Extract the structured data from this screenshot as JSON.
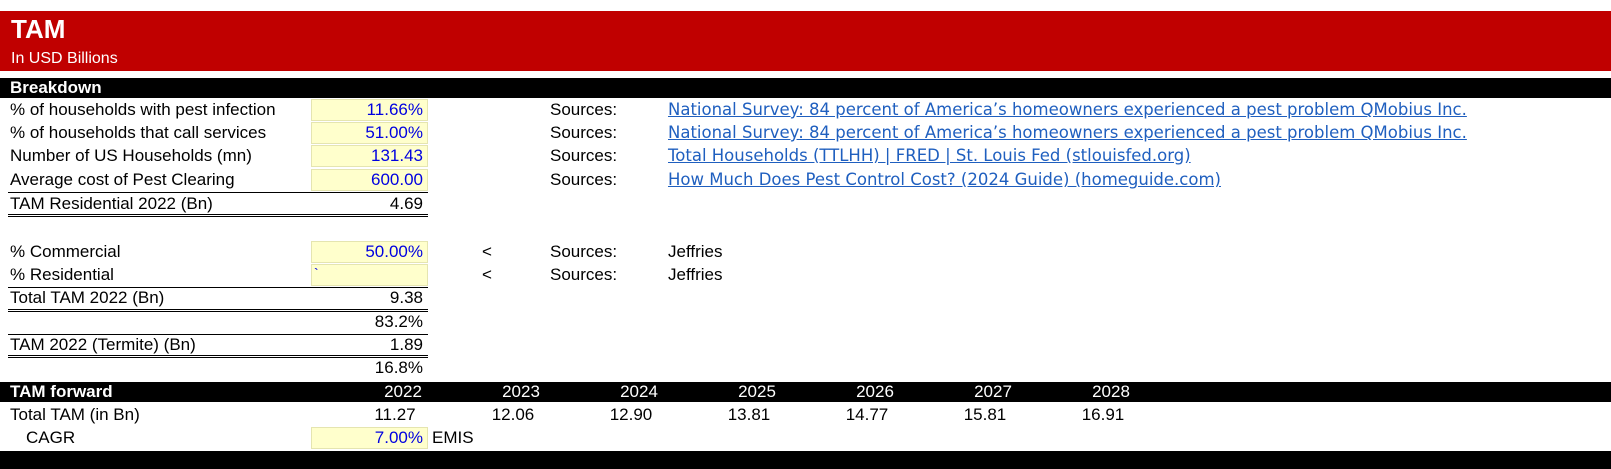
{
  "header": {
    "title": "TAM",
    "subtitle": "In USD Billions"
  },
  "breakdown": {
    "label": "Breakdown",
    "rows": [
      {
        "label": "% of households with pest infection",
        "value": "11.66%",
        "source_label": "Sources:",
        "source": "National Survey: 84 percent of America’s homeowners experienced a pest problem QMobius Inc."
      },
      {
        "label": "% of households that call services",
        "value": "51.00%",
        "source_label": "Sources:",
        "source": "National Survey: 84 percent of America’s homeowners experienced a pest problem QMobius Inc."
      },
      {
        "label": "Number of US Households (mn)",
        "value": "131.43",
        "source_label": "Sources:",
        "source": "Total Households (TTLHH) | FRED | St. Louis Fed (stlouisfed.org)"
      },
      {
        "label": "Average cost of Pest Clearing",
        "value": "600.00",
        "source_label": "Sources:",
        "source": "How Much Does Pest Control Cost? (2024 Guide) (homeguide.com)"
      }
    ],
    "tam_residential": {
      "label": "TAM Residential 2022 (Bn)",
      "value": "4.69"
    },
    "commercial": {
      "label": "% Commercial",
      "value": "50.00%",
      "arrow": "<",
      "source_label": "Sources:",
      "source": "Jeffries"
    },
    "residential": {
      "label": "% Residential",
      "value": "`",
      "arrow": "<",
      "source_label": "Sources:",
      "source": "Jeffries"
    },
    "total_tam": {
      "label": "Total TAM 2022 (Bn)",
      "value": "9.38"
    },
    "share_1": "83.2%",
    "termite": {
      "label": "TAM 2022 (Termite) (Bn)",
      "value": "1.89"
    },
    "share_2": "16.8%"
  },
  "forward": {
    "label": "TAM forward",
    "years": [
      "2022",
      "2023",
      "2024",
      "2025",
      "2026",
      "2027",
      "2028"
    ],
    "total_label": "Total TAM (in Bn)",
    "totals": [
      "11.27",
      "12.06",
      "12.90",
      "13.81",
      "14.77",
      "15.81",
      "16.91"
    ],
    "cagr_label": "CAGR",
    "cagr_value": "7.00%",
    "cagr_source": "EMIS"
  }
}
